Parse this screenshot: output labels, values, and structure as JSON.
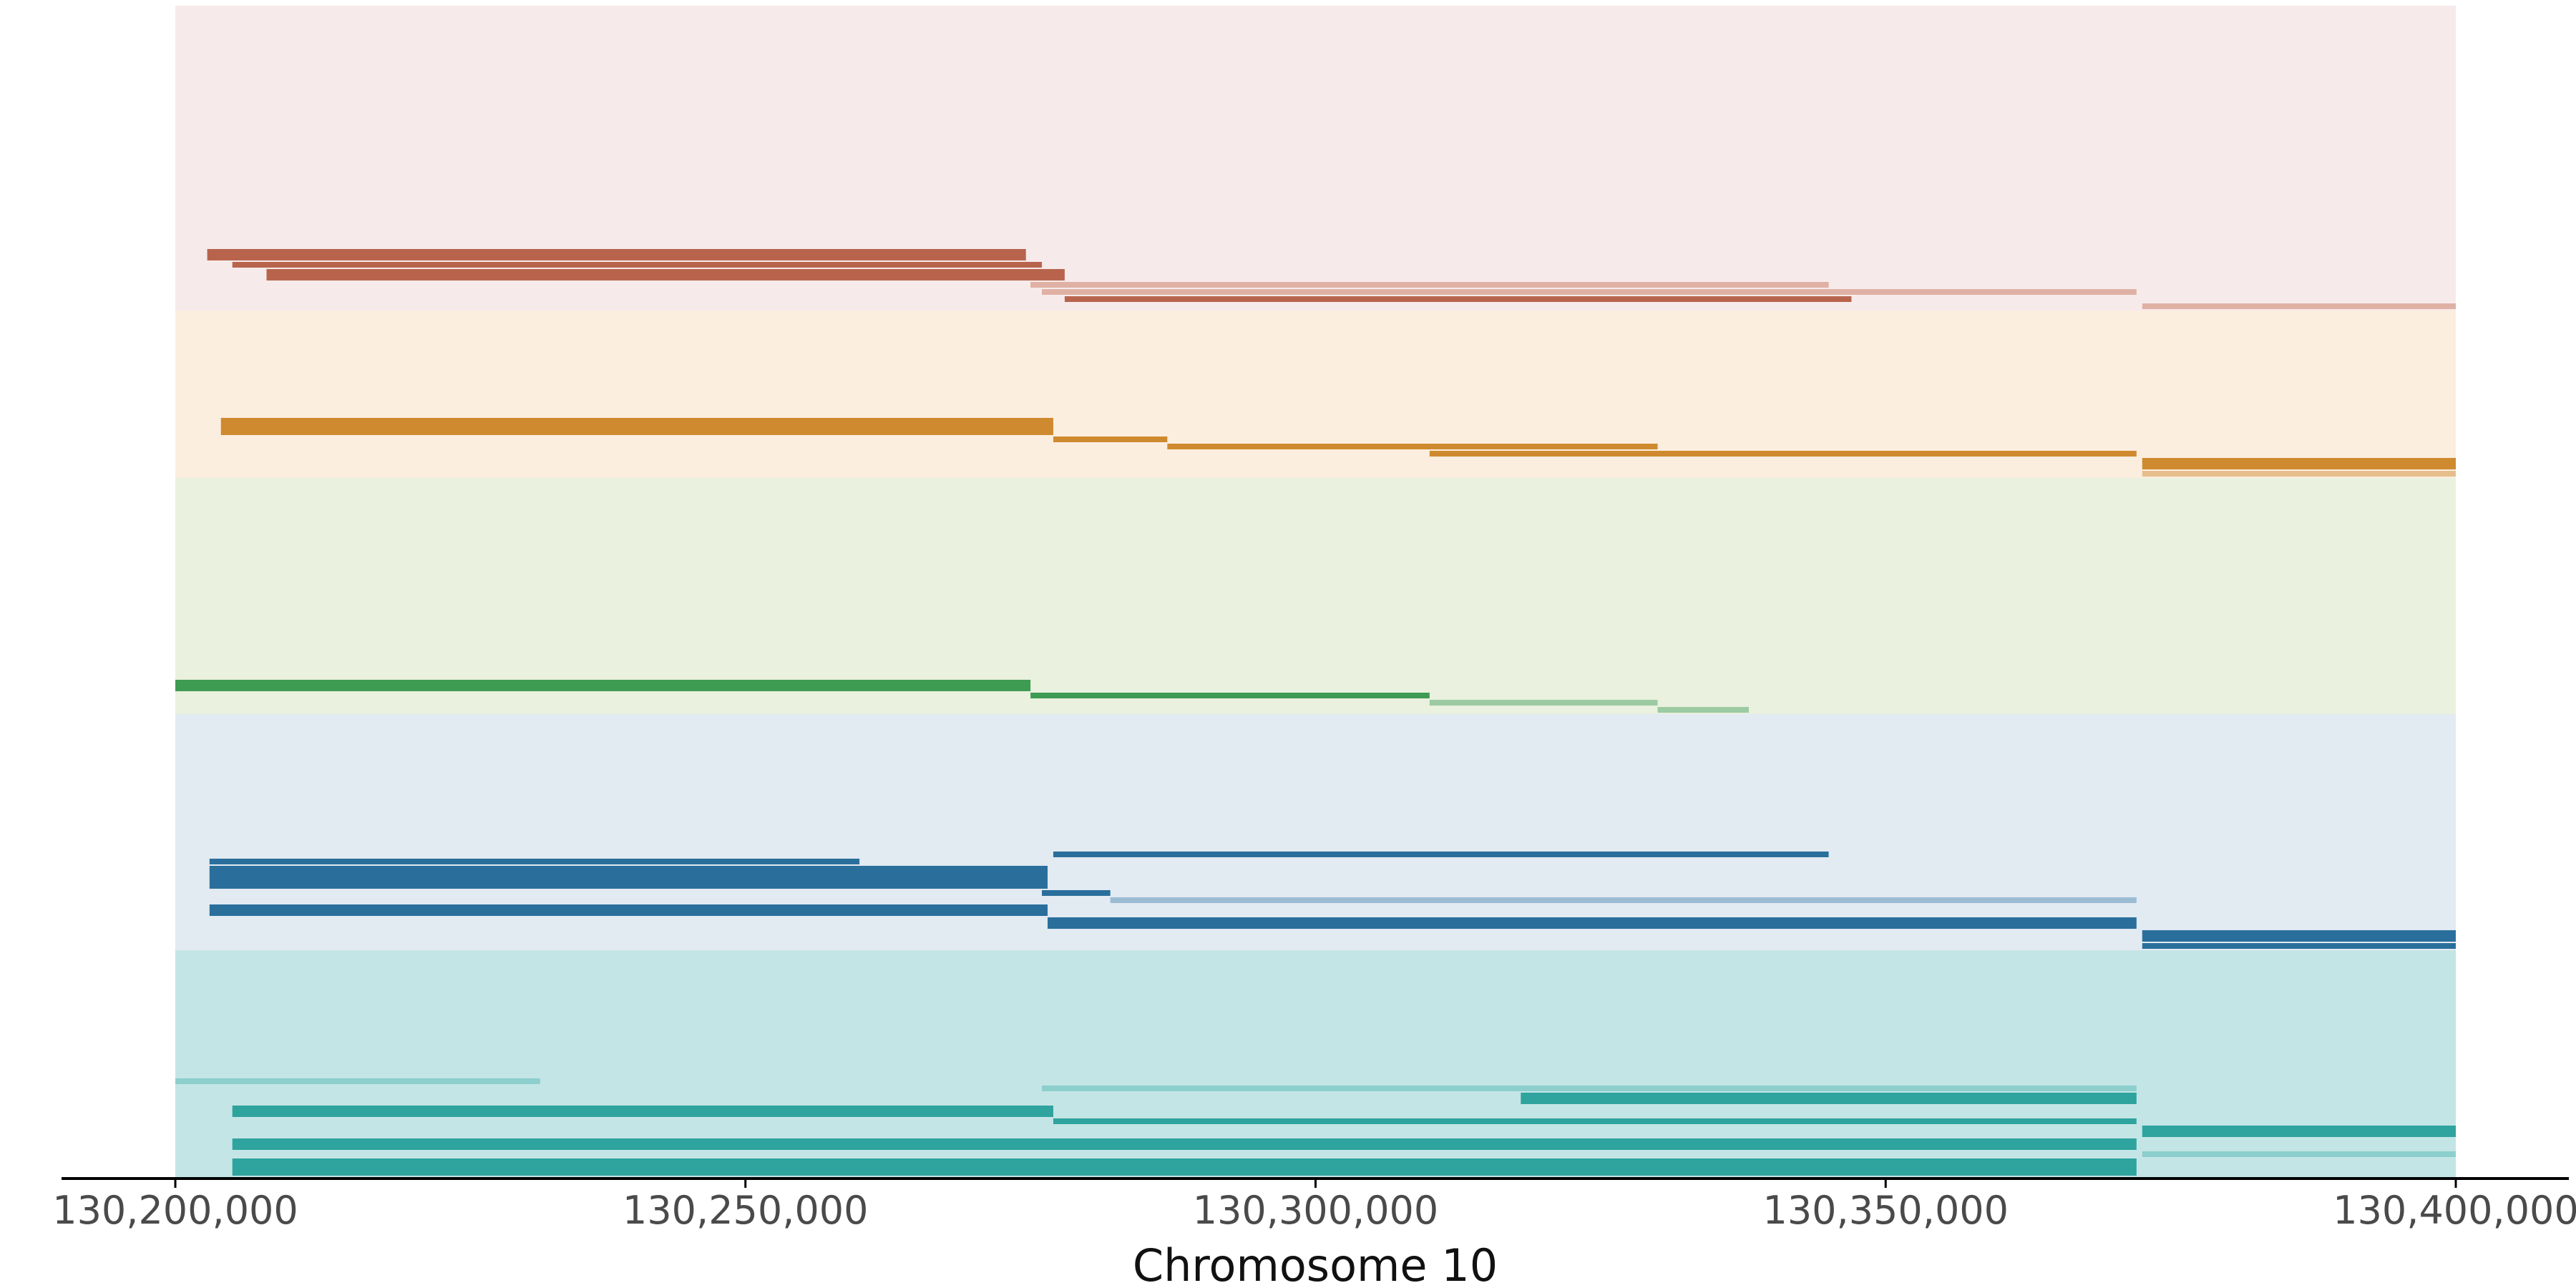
{
  "chart_data": {
    "type": "bar",
    "xlabel": "Chromosome 10",
    "ylabel": "",
    "xlim": [
      130200000,
      130400000
    ],
    "x_ticks": [
      130200000,
      130250000,
      130300000,
      130350000,
      130400000
    ],
    "x_tick_labels": [
      "130,200,000",
      "130,250,000",
      "130,300,000",
      "130,350,000",
      "130,400,000"
    ],
    "grid": false,
    "legend": "none",
    "bands": [
      {
        "bg": "#f7eaeb",
        "fg": "#b8644d",
        "light": "#dfb1a4",
        "segments": [
          {
            "s": 130202800,
            "e": 130274600,
            "w": 2
          },
          {
            "s": 130205000,
            "e": 130276000,
            "w": 1
          },
          {
            "s": 130208000,
            "e": 130278000,
            "w": 2
          },
          {
            "s": 130275000,
            "e": 130345000,
            "w": 1,
            "lt": 1
          },
          {
            "s": 130276000,
            "e": 130372000,
            "w": 1,
            "lt": 1
          },
          {
            "s": 130278000,
            "e": 130347000,
            "w": 1
          },
          {
            "s": 130372500,
            "e": 130400000,
            "w": 1,
            "lt": 1
          }
        ]
      },
      {
        "bg": "#fbeedf",
        "fg": "#cf8a2f",
        "light": "#e6be8c",
        "segments": [
          {
            "s": 130204000,
            "e": 130277000,
            "w": 3
          },
          {
            "s": 130277000,
            "e": 130287000,
            "w": 1
          },
          {
            "s": 130287000,
            "e": 130330000,
            "w": 1
          },
          {
            "s": 130310000,
            "e": 130372000,
            "w": 1
          },
          {
            "s": 130372500,
            "e": 130400000,
            "w": 2
          },
          {
            "s": 130372500,
            "e": 130400000,
            "w": 1,
            "lt": 1
          }
        ]
      },
      {
        "bg": "#eaf1de",
        "fg": "#3e9b52",
        "light": "#9ccba3",
        "segments": [
          {
            "s": 130200000,
            "e": 130275000,
            "w": 2
          },
          {
            "s": 130275000,
            "e": 130310000,
            "w": 1
          },
          {
            "s": 130310000,
            "e": 130330000,
            "w": 1,
            "lt": 1
          },
          {
            "s": 130330000,
            "e": 130338000,
            "w": 1,
            "lt": 1
          }
        ]
      },
      {
        "bg": "#e2eaf2",
        "fg": "#2a6f9c",
        "light": "#9cbcd4",
        "segments": [
          {
            "s": 130277000,
            "e": 130345000,
            "w": 1
          },
          {
            "s": 130203000,
            "e": 130260000,
            "w": 1
          },
          {
            "s": 130203000,
            "e": 130276500,
            "w": 4
          },
          {
            "s": 130276000,
            "e": 130282000,
            "w": 1
          },
          {
            "s": 130282000,
            "e": 130372000,
            "w": 1,
            "lt": 1
          },
          {
            "s": 130203000,
            "e": 130276500,
            "w": 2
          },
          {
            "s": 130276500,
            "e": 130372000,
            "w": 2
          },
          {
            "s": 130372500,
            "e": 130400000,
            "w": 2
          },
          {
            "s": 130372500,
            "e": 130400000,
            "w": 1
          }
        ]
      },
      {
        "bg": "#c4e5e6",
        "fg": "#2fa39e",
        "light": "#8ccfcc",
        "segments": [
          {
            "s": 130200000,
            "e": 130232000,
            "w": 1,
            "lt": 1
          },
          {
            "s": 130276000,
            "e": 130372000,
            "w": 1,
            "lt": 1
          },
          {
            "s": 130318000,
            "e": 130372000,
            "w": 2
          },
          {
            "s": 130205000,
            "e": 130277000,
            "w": 2
          },
          {
            "s": 130277000,
            "e": 130372000,
            "w": 1
          },
          {
            "s": 130372500,
            "e": 130400000,
            "w": 2
          },
          {
            "s": 130205000,
            "e": 130372000,
            "w": 2
          },
          {
            "s": 130372500,
            "e": 130400000,
            "w": 1,
            "lt": 1
          },
          {
            "s": 130205000,
            "e": 130372000,
            "w": 3
          }
        ]
      }
    ]
  }
}
